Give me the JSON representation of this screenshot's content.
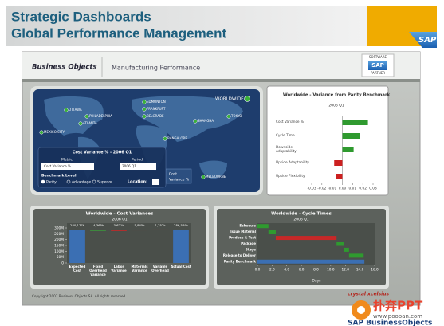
{
  "header": {
    "title_line1": "Strategic Dashboards",
    "title_line2": "Global Performance Management",
    "logo": "SAP"
  },
  "app": {
    "brand": "Business Objects",
    "title": "Manufacturing Performance",
    "partner_top": "SOFTWARE",
    "partner_logo": "SAP",
    "partner_bottom": "PARTNER"
  },
  "map": {
    "label": "WORLDWIDE",
    "cities": [
      "OTTAWA",
      "PHILADELPHIA",
      "ATLANTA",
      "MEXICO CITY",
      "EDMONTON",
      "FRANKFURT",
      "BELGRADE",
      "SHANGHAI",
      "TOKYO",
      "BANGALORE",
      "MELBOURNE"
    ],
    "tooltip_line1": "Cost",
    "tooltip_line2": "Variance %",
    "panel": {
      "title": "Cost Variance % - 2006 Q1",
      "metric_label": "Metric",
      "metric_value": "Cost Variance %",
      "period_label": "Period",
      "period_value": "2006 Q1",
      "benchmark_label": "Benchmark Level:",
      "options": [
        "Parity",
        "Advantage",
        "Superior"
      ],
      "location_label": "Location:"
    }
  },
  "parity_chart": {
    "type": "bar",
    "title": "Worldwide - Variance from Parity Benchmark",
    "subtitle": "2006 Q1",
    "categories": [
      "Cost Variance %",
      "Cycle Time",
      "Downside Adaptability",
      "Upside Adaptability",
      "Upside Flexibility"
    ],
    "values": [
      0.025,
      0.017,
      0.011,
      -0.008,
      -0.006
    ],
    "colors": [
      "#2f9a2f",
      "#2f9a2f",
      "#2f9a2f",
      "#cc2020",
      "#cc2020"
    ],
    "xlim": [
      -0.03,
      0.03
    ],
    "xticks": [
      -0.03,
      -0.02,
      -0.01,
      {
        "value": 0,
        "label": "0.00"
      },
      0.01,
      0.02,
      0.03
    ]
  },
  "cost_chart": {
    "type": "waterfall",
    "title": "Worldwide - Cost Variances",
    "subtitle": "2006 Q1",
    "categories": [
      "Expected Cost",
      "Fixed Overhead Variance",
      "Labor Variance",
      "Materials Variance",
      "Variable Overhead",
      "Actual Cost"
    ],
    "values": [
      280.177,
      -4.365,
      3.621,
      5.845,
      1.252,
      286.549
    ],
    "value_labels": [
      "280,177k",
      "-4,365k",
      "3,621k",
      "5,845k",
      "1,252k",
      "286,549k"
    ],
    "colors": [
      "#3b6fb3",
      "#3aa03a",
      "#c62828",
      "#c62828",
      "#c62828",
      "#3b6fb3"
    ],
    "ylim": [
      0,
      300
    ],
    "yticks": [
      0,
      {
        "value": 50,
        "label": "50M"
      },
      {
        "value": 100,
        "label": "100M"
      },
      {
        "value": 150,
        "label": "150M"
      },
      {
        "value": 200,
        "label": "200M"
      },
      {
        "value": 250,
        "label": "250M"
      },
      {
        "value": 300,
        "label": "300M"
      }
    ]
  },
  "cycle_chart": {
    "type": "gantt",
    "title": "Worldwide - Cycle Times",
    "subtitle": "2006 Q1",
    "x_label": "Days",
    "categories": [
      "Schedule",
      "Issue Material",
      "Produce & Test",
      "Package",
      "Stage",
      "Release to Deliver",
      "Parity Benchmark"
    ],
    "start": [
      0,
      1.5,
      2.5,
      10.8,
      11.8,
      12.5,
      0
    ],
    "values": [
      1.5,
      1.0,
      8.3,
      1.0,
      0.7,
      2.0,
      14.6
    ],
    "colors": [
      "#2f9a2f",
      "#2f9a2f",
      "#c62828",
      "#2f9a2f",
      "#2f9a2f",
      "#2f9a2f",
      "#3b6fb3"
    ],
    "xlim": [
      0,
      16
    ],
    "xticks": [
      {
        "value": 0,
        "label": "0.0"
      },
      {
        "value": 2,
        "label": "2.0"
      },
      {
        "value": 4,
        "label": "4.0"
      },
      {
        "value": 6,
        "label": "6.0"
      },
      {
        "value": 8,
        "label": "8.0"
      },
      {
        "value": 10,
        "label": "10.0"
      },
      {
        "value": 12,
        "label": "12.0"
      },
      {
        "value": 14,
        "label": "14.0"
      },
      {
        "value": 16,
        "label": "16.0"
      }
    ]
  },
  "footer": {
    "copyright": "Copyright 2007 Business Objects SA. All rights reserved.",
    "product": "crystal xcelsius",
    "watermark": "扑奔PPT",
    "watermark_url": "www.pooban.com",
    "watermark_brand": "SAP BusinessObjects"
  }
}
